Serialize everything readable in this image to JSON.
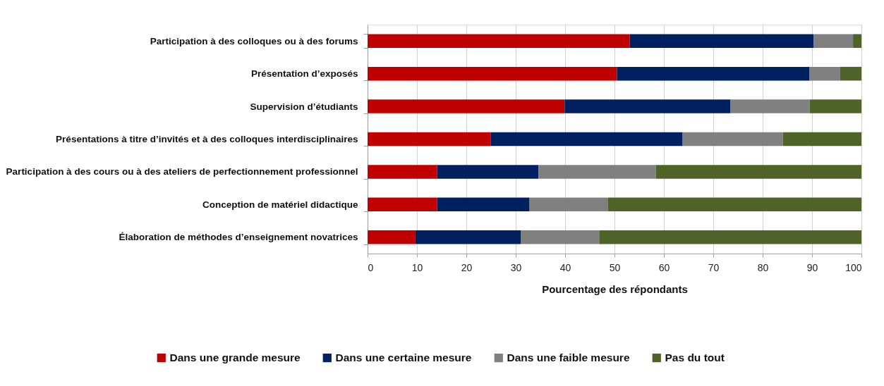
{
  "chart_data": {
    "type": "bar",
    "orientation": "horizontal",
    "stacked": true,
    "xlabel": "Pourcentage des répondants",
    "categories": [
      "Participation à des colloques ou à des forums",
      "Présentation d’exposés",
      "Supervision d’étudiants",
      "Présentations à titre d’invités et à des colloques interdisciplinaires",
      "Participation à des cours ou à des ateliers de perfectionnement professionnel",
      "Conception de matériel didactique",
      "Élaboration de méthodes d’enseignement novatrices"
    ],
    "series": [
      {
        "name": "Dans une grande mesure",
        "color": "#c00000",
        "values": [
          53.1,
          50.5,
          39.9,
          24.9,
          14.1,
          14.1,
          9.7
        ]
      },
      {
        "name": "Dans une certaine mesure",
        "color": "#002060",
        "values": [
          37.2,
          39.0,
          33.6,
          38.9,
          20.5,
          18.7,
          21.3
        ]
      },
      {
        "name": "Dans une faible mesure",
        "color": "#808080",
        "values": [
          8.0,
          6.2,
          16.0,
          20.3,
          23.8,
          15.9,
          15.9
        ]
      },
      {
        "name": "Pas du tout",
        "color": "#4f6228",
        "values": [
          1.7,
          4.3,
          10.5,
          15.9,
          41.6,
          51.3,
          53.1
        ]
      }
    ],
    "xlim": [
      0,
      100
    ],
    "xticks": [
      0,
      10,
      20,
      30,
      40,
      50,
      60,
      70,
      80,
      90,
      100
    ],
    "grid": "x",
    "legend": "bottom"
  }
}
